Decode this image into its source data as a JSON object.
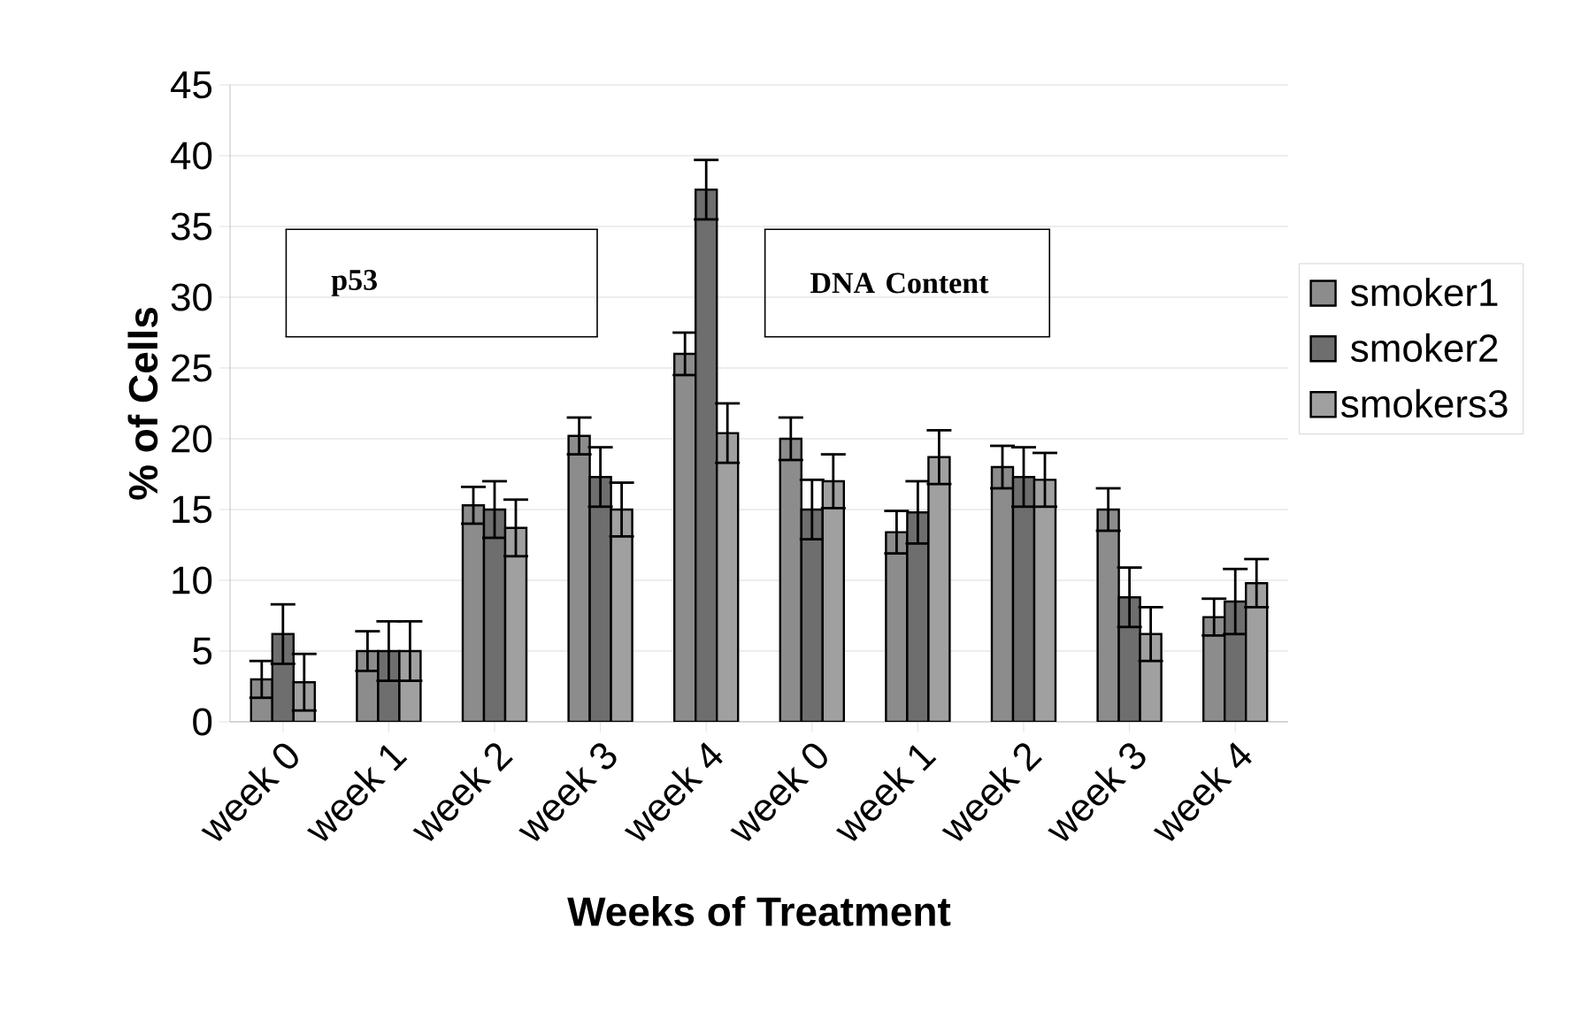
{
  "chart_data": {
    "type": "bar",
    "xlabel": "Weeks of Treatment",
    "ylabel": "% of Cells",
    "categories": [
      "week 0",
      "week 1",
      "week 2",
      "week 3",
      "week 4",
      "week 0",
      "week 1",
      "week 2",
      "week 3",
      "week 4"
    ],
    "series": [
      {
        "name": "smoker1",
        "color": "#8c8c8c",
        "values": [
          3,
          5,
          15.3,
          20.2,
          26,
          20,
          13.4,
          18,
          15,
          7.4
        ],
        "errors": [
          1.3,
          1.4,
          1.3,
          1.3,
          1.5,
          1.5,
          1.5,
          1.5,
          1.5,
          1.3
        ]
      },
      {
        "name": "smoker2",
        "color": "#6e6e6e",
        "values": [
          6.2,
          5,
          15,
          17.3,
          37.6,
          15,
          14.8,
          17.3,
          8.8,
          8.5
        ],
        "errors": [
          2.1,
          2.1,
          2.0,
          2.1,
          2.1,
          2.1,
          2.2,
          2.1,
          2.1,
          2.3
        ]
      },
      {
        "name": "smokers3",
        "color": "#a0a0a0",
        "values": [
          2.8,
          5,
          13.7,
          15,
          20.4,
          17,
          18.7,
          17.1,
          6.2,
          9.8
        ],
        "errors": [
          2.0,
          2.1,
          2.0,
          1.9,
          2.1,
          1.9,
          1.9,
          1.9,
          1.9,
          1.7
        ]
      }
    ],
    "ylim": [
      0,
      45
    ],
    "yticks": [
      0,
      5,
      10,
      15,
      20,
      25,
      30,
      35,
      40,
      45
    ],
    "grid": "y",
    "legend": "right",
    "annotations": [
      "p53",
      "DNA Content"
    ]
  }
}
